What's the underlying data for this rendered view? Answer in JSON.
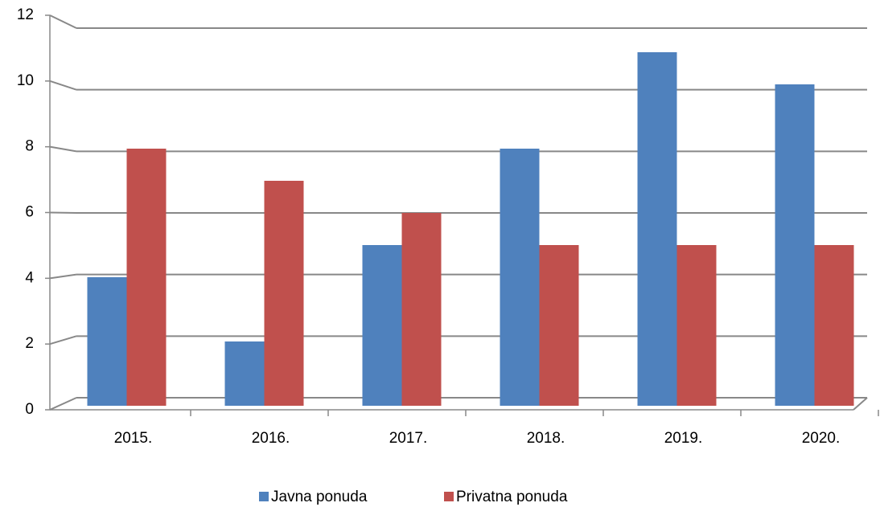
{
  "chart_data": {
    "type": "bar",
    "categories": [
      "2015.",
      "2016.",
      "2017.",
      "2018.",
      "2019.",
      "2020."
    ],
    "series": [
      {
        "name": "Javna ponuda",
        "color": "#4f81bd",
        "values": [
          4,
          2,
          5,
          8,
          11,
          10
        ]
      },
      {
        "name": "Privatna ponuda",
        "color": "#c0504d",
        "values": [
          8,
          7,
          6,
          5,
          5,
          5
        ]
      }
    ],
    "ylim": [
      0,
      12
    ],
    "yticks": [
      0,
      2,
      4,
      6,
      8,
      10,
      12
    ],
    "grid": true,
    "legend": "bottom"
  }
}
